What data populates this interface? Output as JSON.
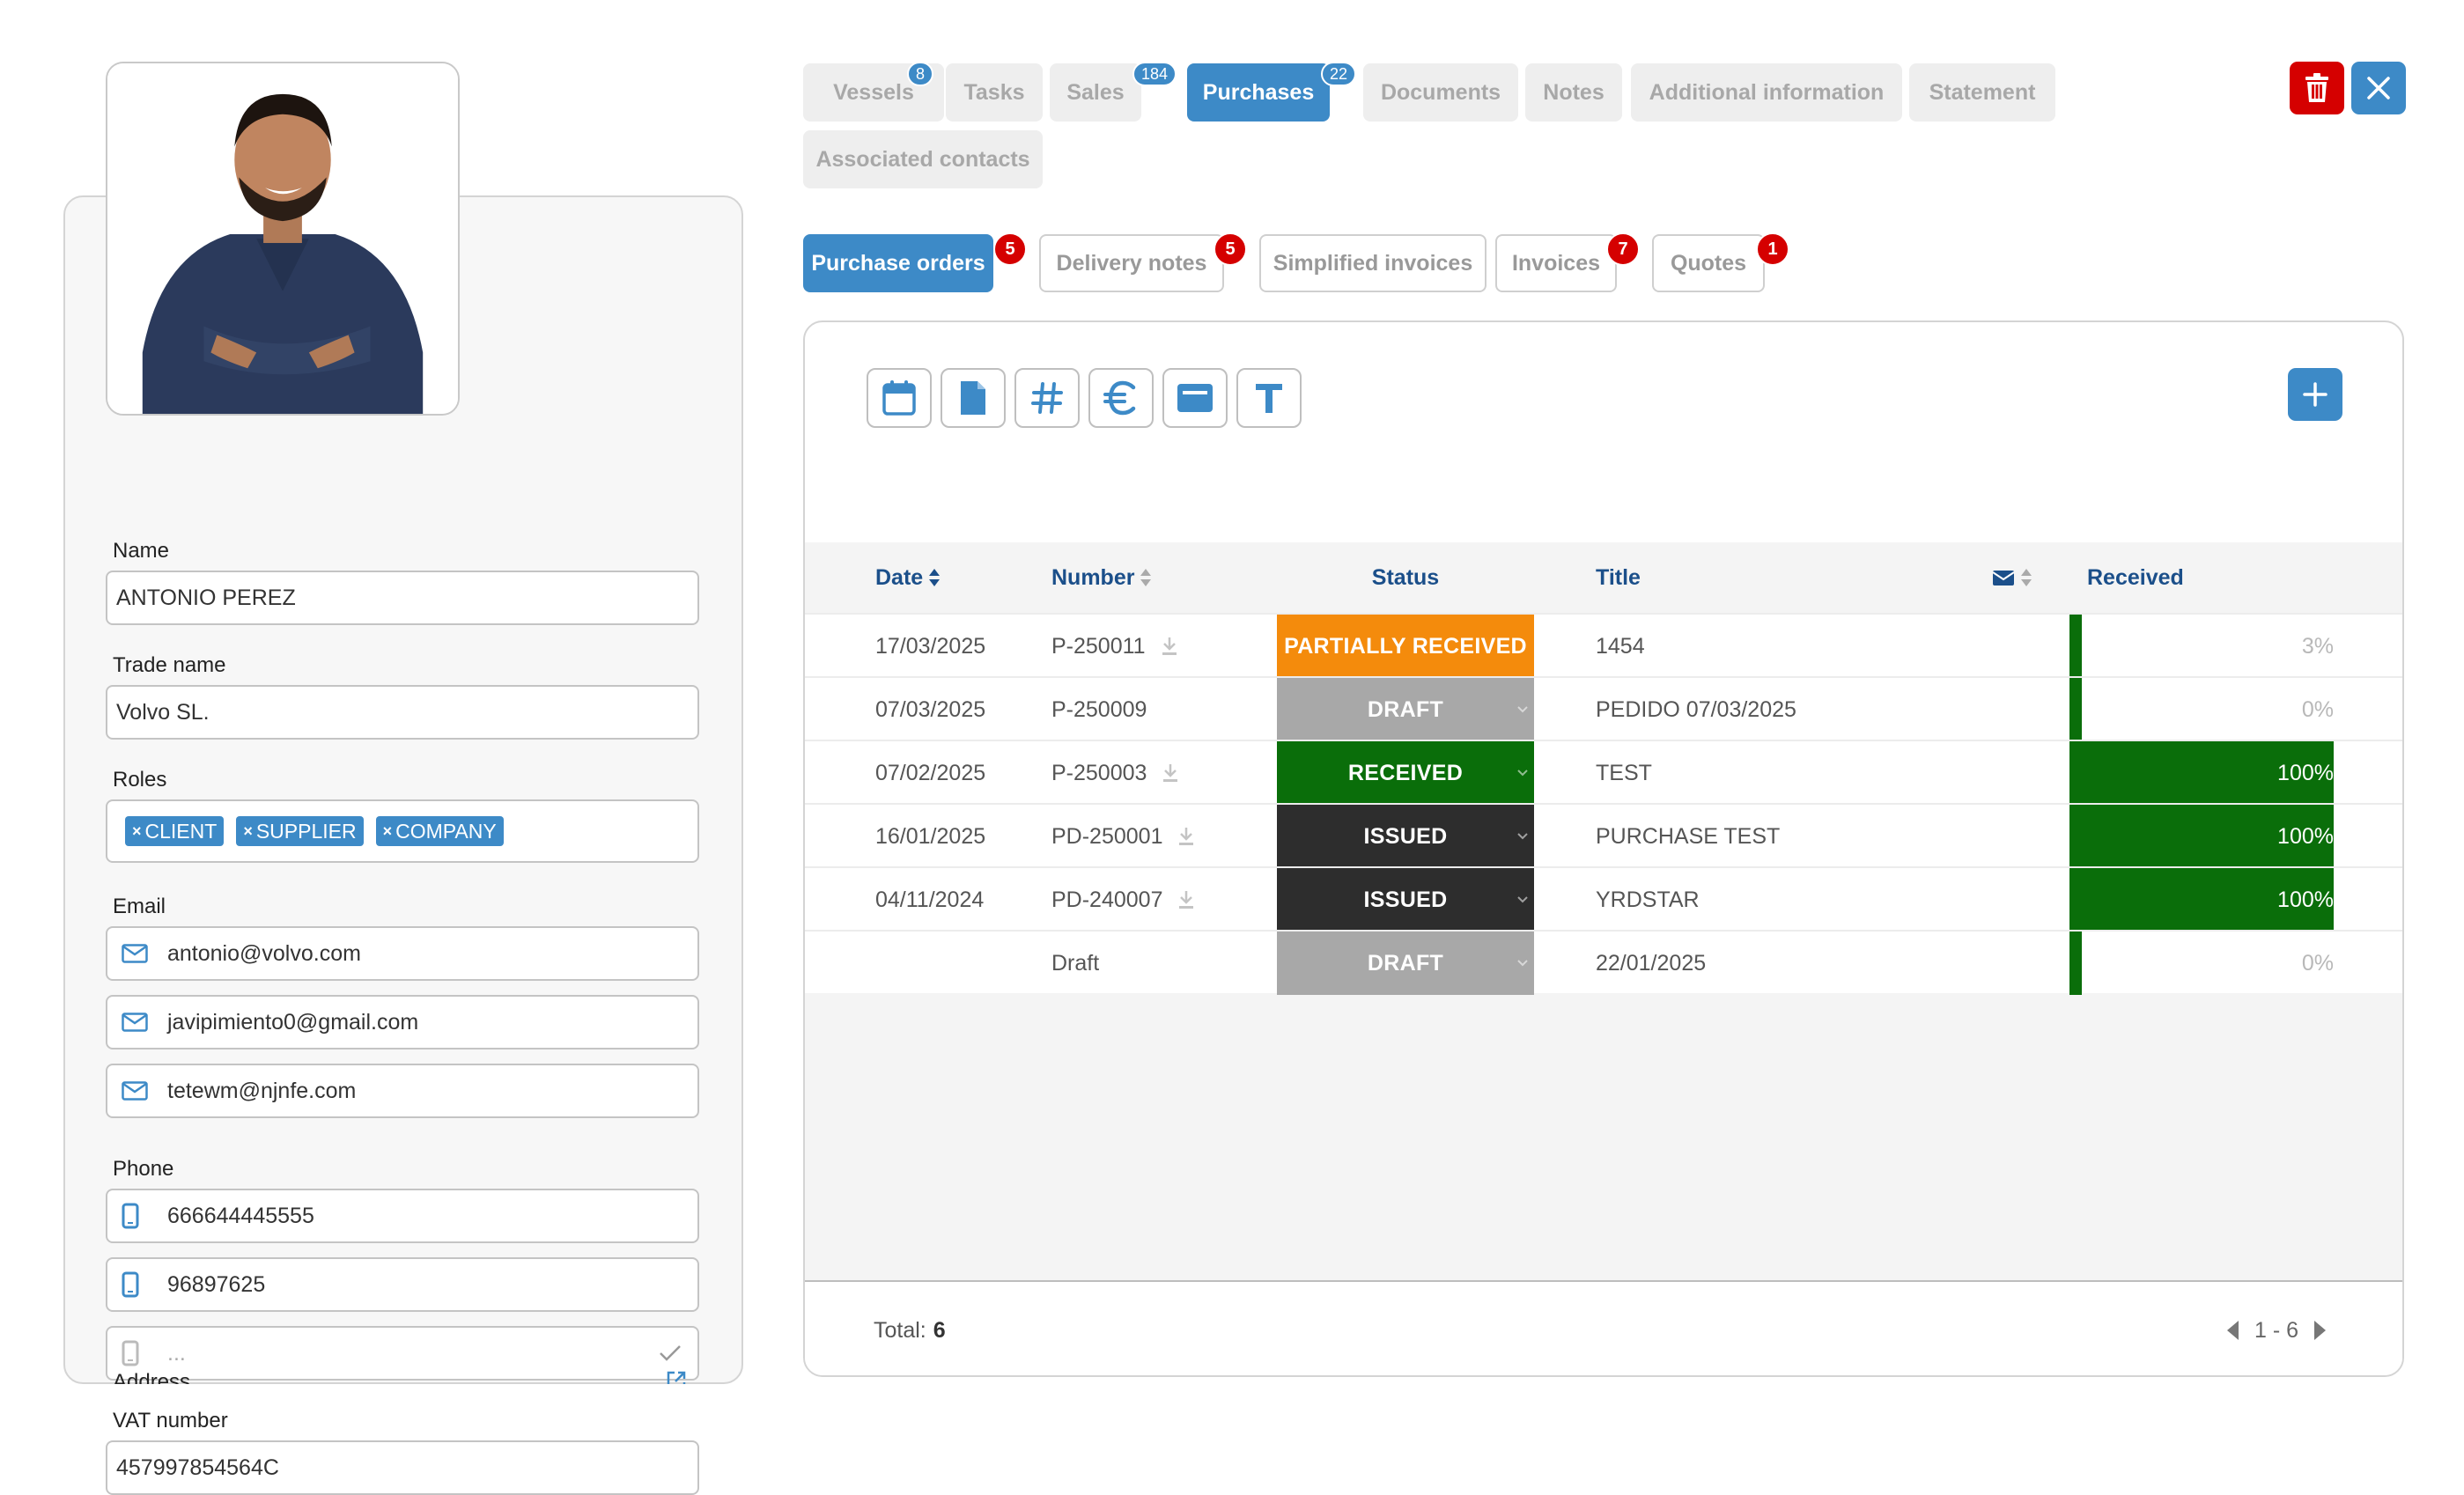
{
  "contact": {
    "name_label": "Name",
    "name": "ANTONIO PEREZ",
    "trade_name_label": "Trade name",
    "trade_name": "Volvo SL.",
    "roles_label": "Roles",
    "roles": [
      "CLIENT",
      "SUPPLIER",
      "COMPANY"
    ],
    "email_label": "Email",
    "emails": [
      "antonio@volvo.com",
      "javipimiento0@gmail.com",
      "tetewm@njnfe.com"
    ],
    "phone_label": "Phone",
    "phones": [
      "666644445555",
      "96897625"
    ],
    "phone_placeholder": "...",
    "vat_label": "VAT number",
    "vat": "457997854564C",
    "address_label": "Address"
  },
  "tabs": [
    {
      "label": "Vessels",
      "badge": "8"
    },
    {
      "label": "Tasks"
    },
    {
      "label": "Sales",
      "badge": "184"
    },
    {
      "label": "Purchases",
      "badge": "22",
      "active": true
    },
    {
      "label": "Documents"
    },
    {
      "label": "Notes"
    },
    {
      "label": "Additional information"
    },
    {
      "label": "Statement"
    },
    {
      "label": "Associated contacts"
    }
  ],
  "subtabs": [
    {
      "label": "Purchase orders",
      "badge": "5",
      "active": true
    },
    {
      "label": "Delivery notes",
      "badge": "5"
    },
    {
      "label": "Simplified invoices"
    },
    {
      "label": "Invoices",
      "badge": "7"
    },
    {
      "label": "Quotes",
      "badge": "1"
    }
  ],
  "toolbar_icons": [
    "calendar-icon",
    "document-icon",
    "hash-icon",
    "euro-icon",
    "card-icon",
    "text-icon"
  ],
  "table": {
    "headers": {
      "date": "Date",
      "number": "Number",
      "status": "Status",
      "title": "Title",
      "received": "Received"
    },
    "rows": [
      {
        "date": "17/03/2025",
        "number": "P-250011",
        "download": true,
        "status": "PARTIALLY RECEIVED",
        "status_color": "#f48b0c",
        "dropdown": false,
        "title": "1454",
        "received": "3%",
        "received_fraction": 0.03
      },
      {
        "date": "07/03/2025",
        "number": "P-250009",
        "download": false,
        "status": "DRAFT",
        "status_color": "#a8a8a8",
        "dropdown": true,
        "title": "PEDIDO 07/03/2025",
        "received": "0%",
        "received_fraction": 0
      },
      {
        "date": "07/02/2025",
        "number": "P-250003",
        "download": true,
        "status": "RECEIVED",
        "status_color": "#0a6e0a",
        "dropdown": true,
        "title": "TEST",
        "received": "100%",
        "received_fraction": 1
      },
      {
        "date": "16/01/2025",
        "number": "PD-250001",
        "download": true,
        "status": "ISSUED",
        "status_color": "#2d2d2d",
        "dropdown": true,
        "title": "PURCHASE TEST",
        "received": "100%",
        "received_fraction": 1
      },
      {
        "date": "04/11/2024",
        "number": "PD-240007",
        "download": true,
        "status": "ISSUED",
        "status_color": "#2d2d2d",
        "dropdown": true,
        "title": "YRDSTAR",
        "received": "100%",
        "received_fraction": 1
      },
      {
        "date": "",
        "number": "Draft",
        "download": false,
        "status": "DRAFT",
        "status_color": "#a8a8a8",
        "dropdown": true,
        "title": "22/01/2025",
        "received": "0%",
        "received_fraction": 0
      }
    ]
  },
  "footer": {
    "total_label": "Total:",
    "total": "6",
    "range": "1 - 6"
  },
  "colors": {
    "accent": "#3d8ac7",
    "danger": "#d50000",
    "header_text": "#1b4f8a",
    "received_bar": "#0a6e0a"
  }
}
